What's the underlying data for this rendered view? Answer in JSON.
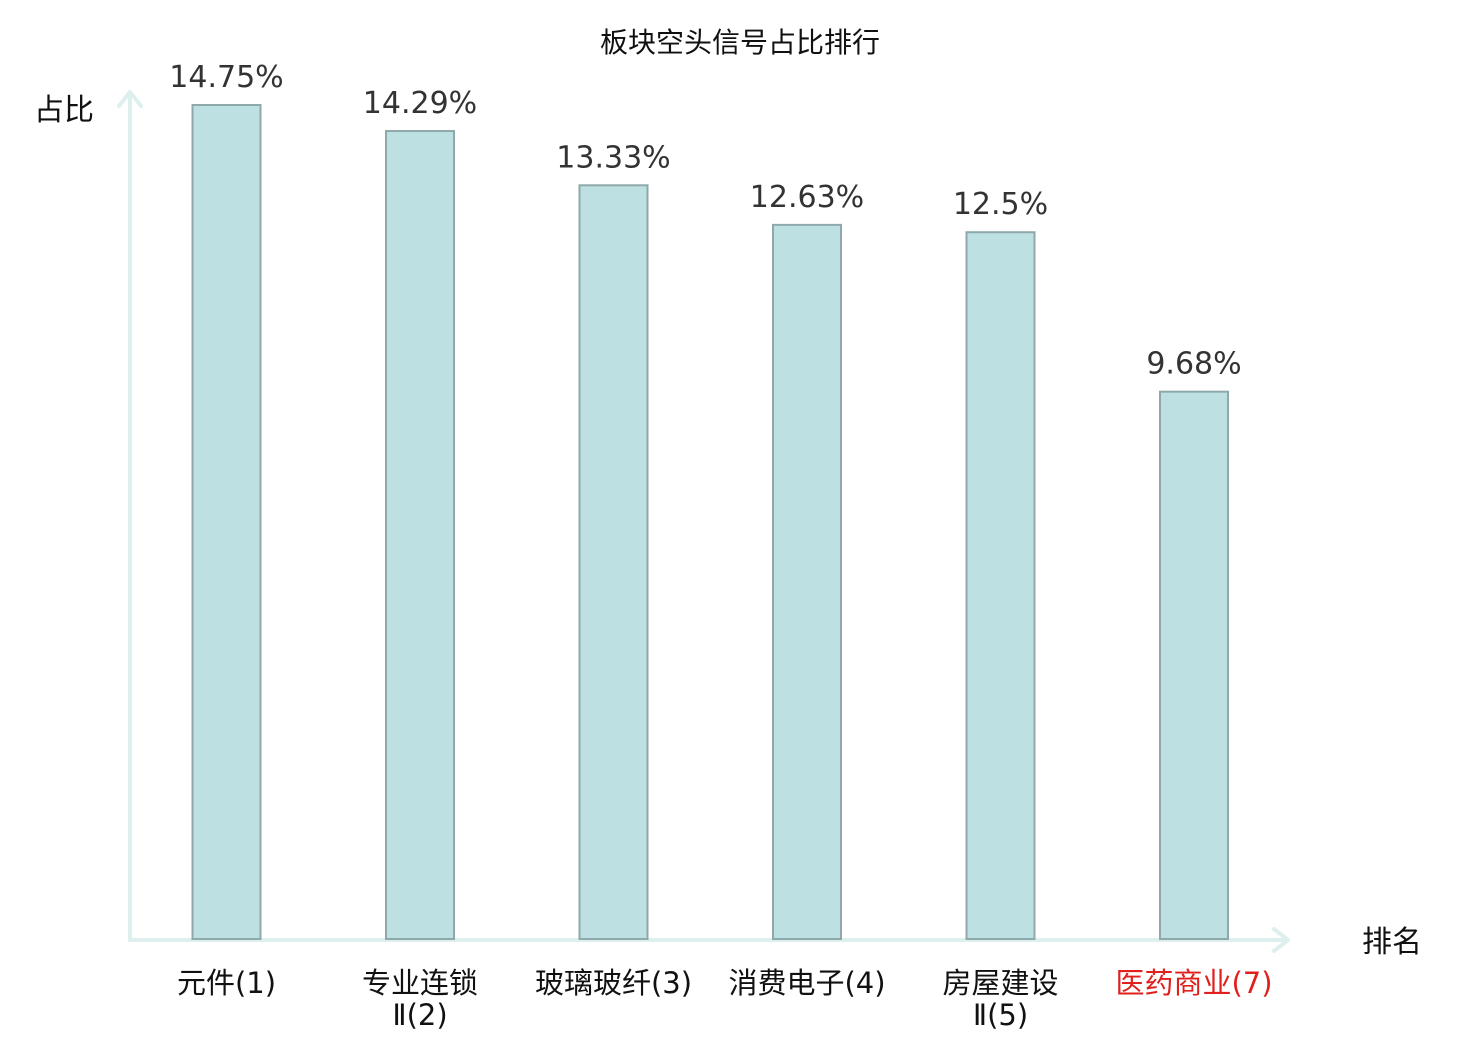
{
  "chart_data": {
    "type": "bar",
    "title": "板块空头信号占比排行",
    "ylabel": "占比",
    "xlabel": "排名",
    "unit": "%",
    "categories": [
      {
        "lines": [
          "元件(1)"
        ],
        "highlight": false
      },
      {
        "lines": [
          "专业连锁",
          "Ⅱ(2)"
        ],
        "highlight": false
      },
      {
        "lines": [
          "玻璃玻纤(3)"
        ],
        "highlight": false
      },
      {
        "lines": [
          "消费电子(4)"
        ],
        "highlight": false
      },
      {
        "lines": [
          "房屋建设",
          "Ⅱ(5)"
        ],
        "highlight": false
      },
      {
        "lines": [
          "医药商业(7)"
        ],
        "highlight": true
      }
    ],
    "values": [
      14.75,
      14.29,
      13.33,
      12.63,
      12.5,
      9.68
    ],
    "value_labels": [
      "14.75%",
      "14.29%",
      "13.33%",
      "12.63%",
      "12.5%",
      "9.68%"
    ],
    "ylim": [
      0,
      14.75
    ],
    "grid": false,
    "legend": "none",
    "colors": {
      "bar_fill": "#bde0e3",
      "bar_stroke": "#8fa9aa",
      "axis": "#ddf0ee",
      "highlight_label": "#e0201c"
    }
  }
}
